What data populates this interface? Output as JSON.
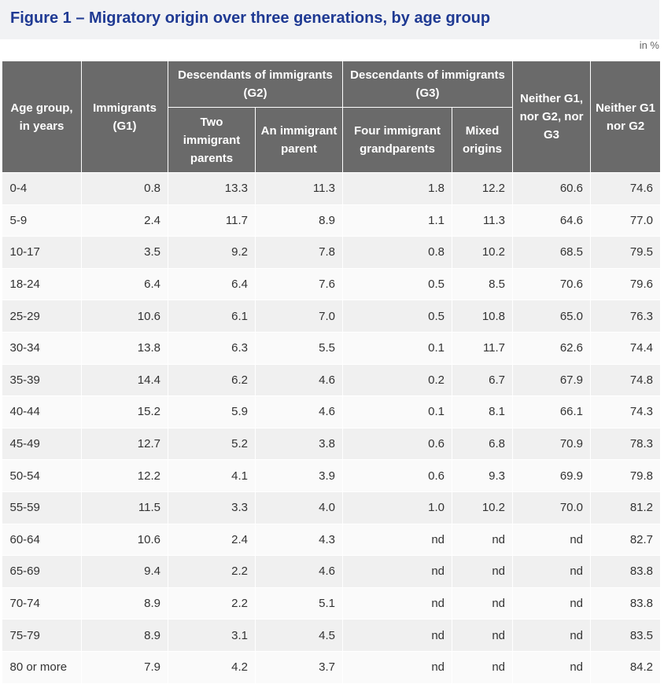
{
  "title": "Figure 1 – Migratory origin over three generations, by age group",
  "unit_label": "in %",
  "headers": {
    "age_group": "Age group, in years",
    "g1": "Immigrants (G1)",
    "g2_group": "Descendants of immigrants (G2)",
    "g2_two": "Two immigrant parents",
    "g2_one": "An immigrant parent",
    "g3_group": "Descendants of immigrants (G3)",
    "g3_four": "Four immigrant grandparents",
    "g3_mixed": "Mixed origins",
    "neither_g1_g2_g3": "Neither G1, nor G2, nor G3",
    "neither_g1_g2": "Neither G1 nor G2"
  },
  "rows": [
    [
      "0-4",
      "0.8",
      "13.3",
      "11.3",
      "1.8",
      "12.2",
      "60.6",
      "74.6"
    ],
    [
      "5-9",
      "2.4",
      "11.7",
      "8.9",
      "1.1",
      "11.3",
      "64.6",
      "77.0"
    ],
    [
      "10-17",
      "3.5",
      "9.2",
      "7.8",
      "0.8",
      "10.2",
      "68.5",
      "79.5"
    ],
    [
      "18-24",
      "6.4",
      "6.4",
      "7.6",
      "0.5",
      "8.5",
      "70.6",
      "79.6"
    ],
    [
      "25-29",
      "10.6",
      "6.1",
      "7.0",
      "0.5",
      "10.8",
      "65.0",
      "76.3"
    ],
    [
      "30-34",
      "13.8",
      "6.3",
      "5.5",
      "0.1",
      "11.7",
      "62.6",
      "74.4"
    ],
    [
      "35-39",
      "14.4",
      "6.2",
      "4.6",
      "0.2",
      "6.7",
      "67.9",
      "74.8"
    ],
    [
      "40-44",
      "15.2",
      "5.9",
      "4.6",
      "0.1",
      "8.1",
      "66.1",
      "74.3"
    ],
    [
      "45-49",
      "12.7",
      "5.2",
      "3.8",
      "0.6",
      "6.8",
      "70.9",
      "78.3"
    ],
    [
      "50-54",
      "12.2",
      "4.1",
      "3.9",
      "0.6",
      "9.3",
      "69.9",
      "79.8"
    ],
    [
      "55-59",
      "11.5",
      "3.3",
      "4.0",
      "1.0",
      "10.2",
      "70.0",
      "81.2"
    ],
    [
      "60-64",
      "10.6",
      "2.4",
      "4.3",
      "nd",
      "nd",
      "nd",
      "82.7"
    ],
    [
      "65-69",
      "9.4",
      "2.2",
      "4.6",
      "nd",
      "nd",
      "nd",
      "83.8"
    ],
    [
      "70-74",
      "8.9",
      "2.2",
      "5.1",
      "nd",
      "nd",
      "nd",
      "83.8"
    ],
    [
      "75-79",
      "8.9",
      "3.1",
      "4.5",
      "nd",
      "nd",
      "nd",
      "83.5"
    ],
    [
      "80 or more",
      "7.9",
      "4.2",
      "3.7",
      "nd",
      "nd",
      "nd",
      "84.2"
    ]
  ]
}
